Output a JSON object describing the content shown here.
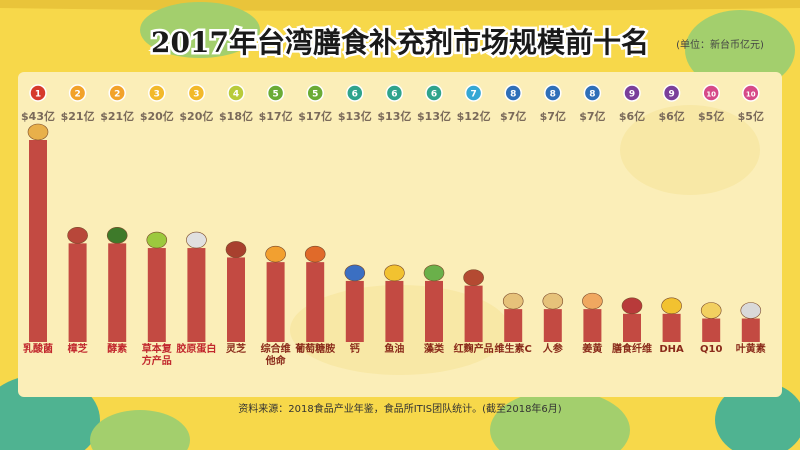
{
  "chart_data": {
    "type": "bar",
    "title": "2017年台湾膳食补充剂市场规模前十名",
    "unit_note": "(单位：新台币亿元)",
    "source": "资料来源：2018食品产业年鉴，食品所ITIS团队统计。(截至2018年6月)",
    "categories": [
      "乳酸菌",
      "樟芝",
      "酵素",
      "草本复方产品",
      "胶原蛋白",
      "灵芝",
      "综合维他命",
      "葡萄糖胺",
      "钙",
      "鱼油",
      "藻类",
      "红麴产品",
      "维生素C",
      "人参",
      "姜黄",
      "膳食纤维",
      "DHA",
      "Q10",
      "叶黄素"
    ],
    "values": [
      43,
      21,
      21,
      20,
      20,
      18,
      17,
      17,
      13,
      13,
      13,
      12,
      7,
      7,
      7,
      6,
      6,
      5,
      5
    ],
    "ranks": [
      "1",
      "2",
      "2",
      "3",
      "3",
      "4",
      "5",
      "5",
      "6",
      "6",
      "6",
      "7",
      "8",
      "8",
      "8",
      "9",
      "9",
      "10",
      "10"
    ],
    "value_labels": [
      "$43亿",
      "$21亿",
      "$21亿",
      "$20亿",
      "$20亿",
      "$18亿",
      "$17亿",
      "$17亿",
      "$13亿",
      "$13亿",
      "$13亿",
      "$12亿",
      "$7亿",
      "$7亿",
      "$7亿",
      "$6亿",
      "$6亿",
      "$5亿",
      "$5亿"
    ],
    "ylim": [
      0,
      43
    ],
    "grid": false,
    "legend": "none"
  },
  "colors": {
    "bar": "#c34a42",
    "panel": "#fbeeb8",
    "label_red": "#c1272d",
    "label_dark": "#8a2a1a",
    "value_text": "#7a6a5a",
    "rank_colors": {
      "1": "#d63a2b",
      "2": "#f2a22a",
      "3": "#f2b92a",
      "4": "#b8cb3a",
      "5": "#6aab35",
      "6": "#2fa38c",
      "7": "#35a7d4",
      "8": "#2f6fb8",
      "9": "#7a3f9a",
      "10": "#d64a88"
    }
  },
  "icons": [
    "yogurt-bottle-icon",
    "mushroom-icon",
    "enzyme-bottle-icon",
    "herbal-leaf-icon",
    "collagen-ball-icon",
    "reishi-mushroom-icon",
    "vitamin-capsules-icon",
    "supplement-bottle-icon",
    "calcium-icon",
    "fish-oil-capsule-icon",
    "seaweed-icon",
    "red-yeast-scoop-icon",
    "vitamin-c-bottle-icon",
    "ginseng-root-icon",
    "turmeric-root-icon",
    "fiber-beans-icon",
    "dha-drop-icon",
    "q10-capsule-icon",
    "lutein-bottle-icon"
  ]
}
